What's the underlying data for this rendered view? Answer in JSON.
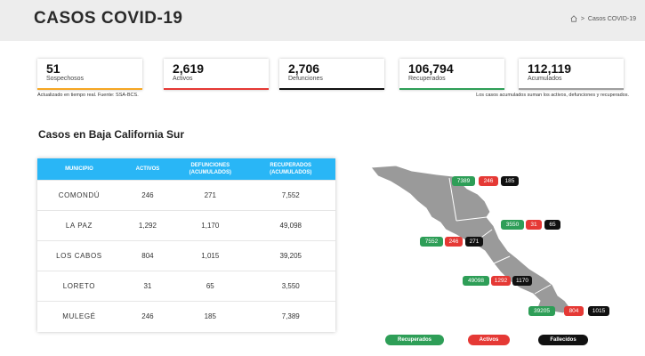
{
  "header": {
    "title": "CASOS COVID-19",
    "breadcrumb_home_icon": "home-icon",
    "breadcrumb_separator": ">",
    "breadcrumb_current": "Casos COVID-19"
  },
  "cards": [
    {
      "value": "51",
      "label": "Sospechosos",
      "color": "#f5a623"
    },
    {
      "value": "2,619",
      "label": "Activos",
      "color": "#e53935"
    },
    {
      "value": "2,706",
      "label": "Defunciones",
      "color": "#111111"
    },
    {
      "value": "106,794",
      "label": "Recuperados",
      "color": "#2e9e57"
    },
    {
      "value": "112,119",
      "label": "Acumulados",
      "color": "#9e9e9e"
    }
  ],
  "notes": {
    "left": "Actualizado en tiempo real. Fuente: SSA-BCS.",
    "right": "Los casos acumulados suman los activos, defunciones y recuperados."
  },
  "section_title": "Casos en Baja California Sur",
  "table": {
    "headers": [
      "MUNICIPIO",
      "ACTIVOS",
      "DEFUNCIONES",
      "(ACUMULADOS)",
      "RECUPERADOS",
      "(ACUMULADOS)"
    ],
    "rows": [
      {
        "municipio": "COMONDÚ",
        "activos": "246",
        "defunciones": "271",
        "recuperados": "7,552"
      },
      {
        "municipio": "LA PAZ",
        "activos": "1,292",
        "defunciones": "1,170",
        "recuperados": "49,098"
      },
      {
        "municipio": "LOS CABOS",
        "activos": "804",
        "defunciones": "1,015",
        "recuperados": "39,205"
      },
      {
        "municipio": "LORETO",
        "activos": "31",
        "defunciones": "65",
        "recuperados": "3,550"
      },
      {
        "municipio": "MULEGÉ",
        "activos": "246",
        "defunciones": "185",
        "recuperados": "7,389"
      }
    ]
  },
  "map": {
    "colors": {
      "recuperados": "#2e9e57",
      "activos": "#e53935",
      "fallecidos": "#111111",
      "land": "#9a9a9a"
    },
    "mulege": {
      "recuperados": "7389",
      "activos": "246",
      "fallecidos": "185"
    },
    "loreto": {
      "recuperados": "3550",
      "activos": "31",
      "fallecidos": "65"
    },
    "comondu": {
      "recuperados": "7552",
      "activos": "246",
      "fallecidos": "271"
    },
    "lapaz": {
      "recuperados": "49098",
      "activos": "1292",
      "fallecidos": "1170"
    },
    "loscabos": {
      "recuperados": "39205",
      "activos": "804",
      "fallecidos": "1015"
    }
  },
  "legend": {
    "recuperados": "Recuperados",
    "activos": "Activos",
    "fallecidos": "Fallecidos"
  }
}
